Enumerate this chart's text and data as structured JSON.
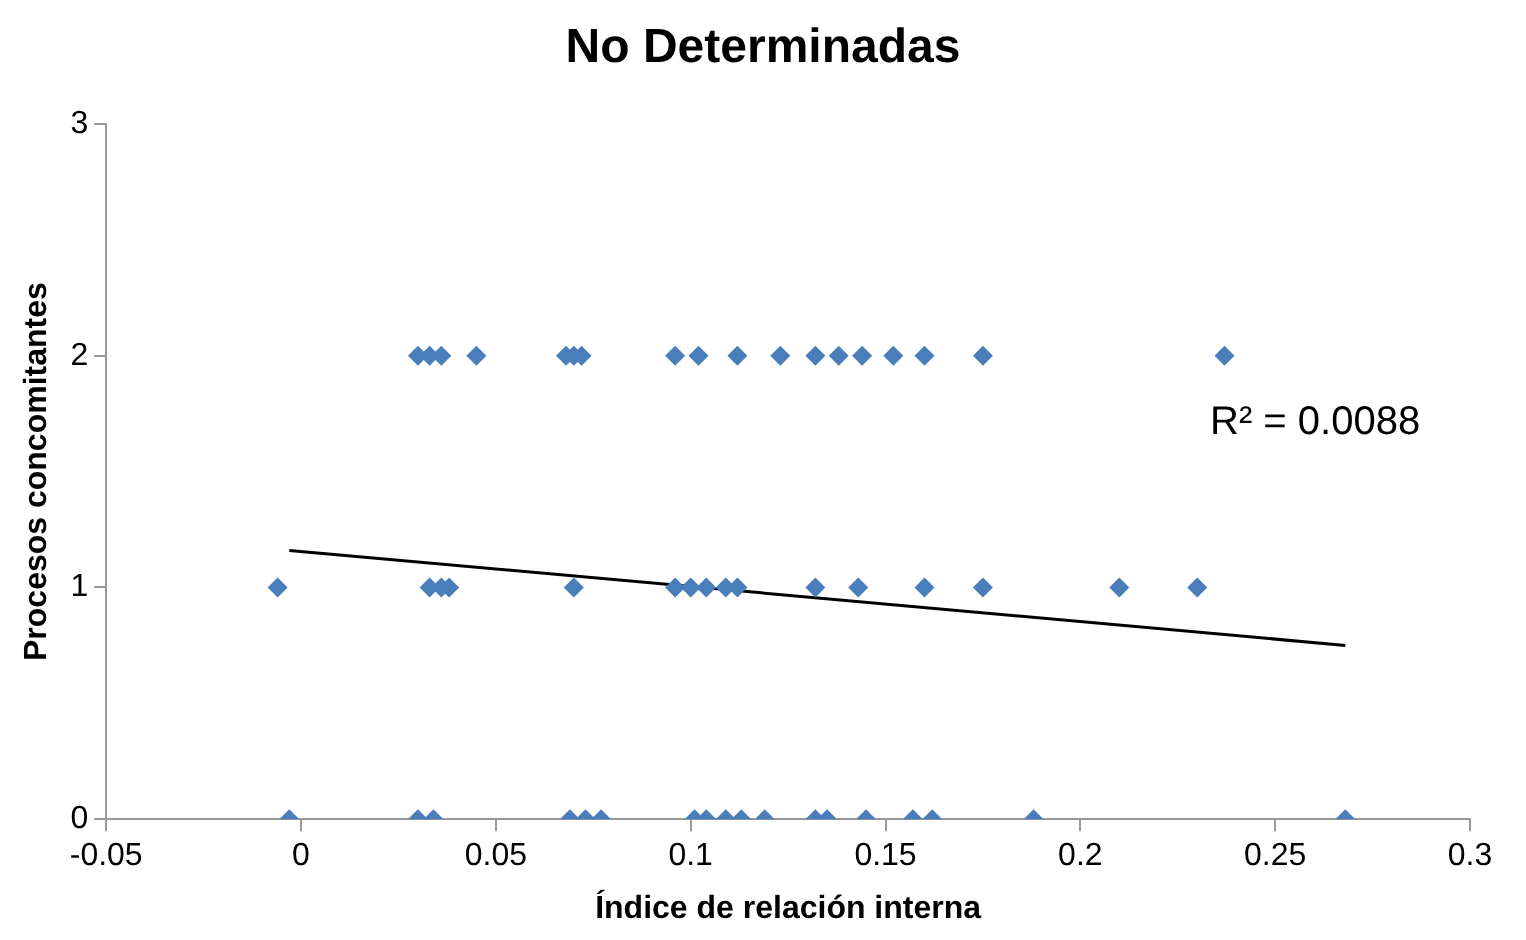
{
  "chart_data": {
    "type": "scatter",
    "title": "No Determinadas",
    "xlabel": "Índice de relación interna",
    "ylabel": "Procesos concomitantes",
    "xlim": [
      -0.05,
      0.3
    ],
    "xticks": [
      -0.05,
      0,
      0.05,
      0.1,
      0.15,
      0.2,
      0.25,
      0.3
    ],
    "ylim": [
      0,
      3
    ],
    "yticks": [
      0,
      1,
      2,
      3
    ],
    "grid": false,
    "legend": false,
    "marker": "diamond",
    "annotations": [
      "R² = 0.0088"
    ],
    "series": [
      {
        "color": "#4a7ebb",
        "x": [
          0.03,
          0.033,
          0.036,
          0.045,
          0.068,
          0.07,
          0.072,
          0.096,
          0.102,
          0.112,
          0.123,
          0.132,
          0.138,
          0.144,
          0.152,
          0.16,
          0.175,
          0.237,
          -0.006,
          0.033,
          0.036,
          0.038,
          0.07,
          0.096,
          0.1,
          0.104,
          0.109,
          0.112,
          0.132,
          0.143,
          0.16,
          0.175,
          0.21,
          0.23,
          -0.003,
          0.03,
          0.034,
          0.069,
          0.073,
          0.077,
          0.101,
          0.104,
          0.109,
          0.113,
          0.119,
          0.132,
          0.135,
          0.145,
          0.157,
          0.162,
          0.188,
          0.268
        ],
        "values": [
          2,
          2,
          2,
          2,
          2,
          2,
          2,
          2,
          2,
          2,
          2,
          2,
          2,
          2,
          2,
          2,
          2,
          2,
          1,
          1,
          1,
          1,
          1,
          1,
          1,
          1,
          1,
          1,
          1,
          1,
          1,
          1,
          1,
          1,
          0,
          0,
          0,
          0,
          0,
          0,
          0,
          0,
          0,
          0,
          0,
          0,
          0,
          0,
          0,
          0,
          0,
          0
        ]
      },
      {
        "type": "line",
        "color": "#000000",
        "marker": "none",
        "x": [
          -0.003,
          0.268
        ],
        "values": [
          1.16,
          0.75
        ]
      }
    ]
  }
}
